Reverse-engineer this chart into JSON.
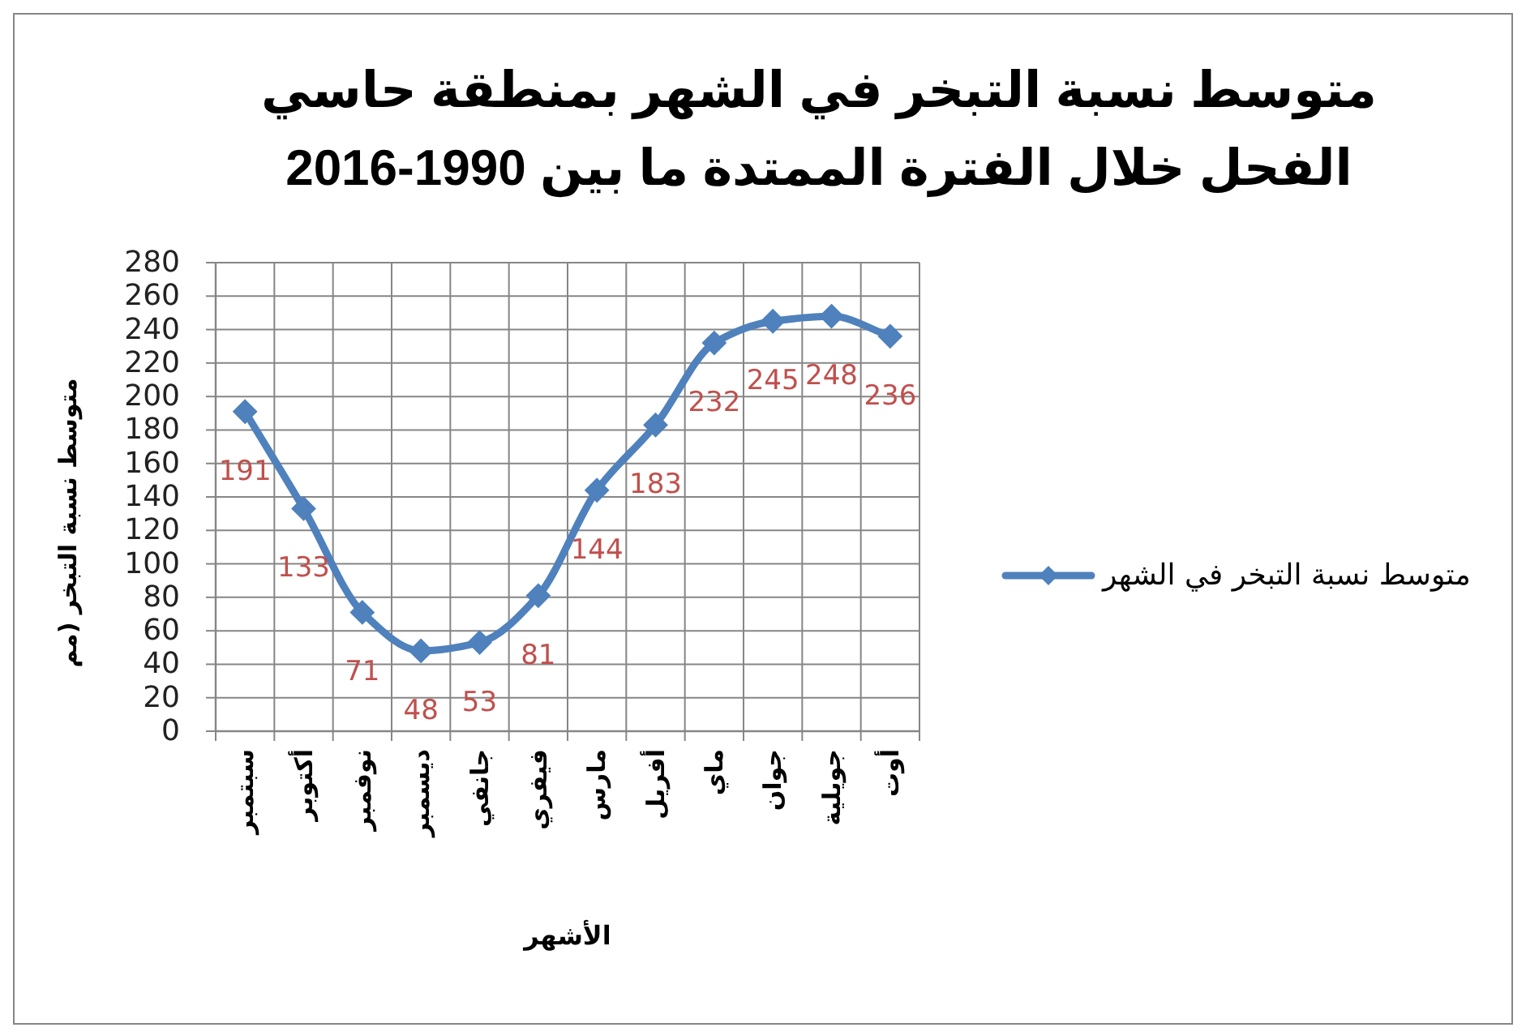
{
  "chart_data": {
    "type": "line",
    "title": "متوسط نسبة التبخر في الشهر بمنطقة حاسي\nالفحل خلال الفترة الممتدة ما بين 1990-2016",
    "xlabel": "الأشهر",
    "ylabel": "متوسط نسبة التبخر (مم",
    "categories": [
      "سبتمبر",
      "أكتوبر",
      "نوفمبر",
      "ديسمبر",
      "جانفي",
      "فيفري",
      "مارس",
      "أفريل",
      "ماي",
      "جوان",
      "جويلية",
      "أوت"
    ],
    "series": [
      {
        "name": "متوسط نسبة التبخر في الشهر",
        "color": "#4f81bd",
        "values": [
          191,
          133,
          71,
          48,
          53,
          81,
          144,
          183,
          232,
          245,
          248,
          236
        ]
      }
    ],
    "ylim": [
      0,
      280
    ],
    "yticks": [
      0,
      20,
      40,
      60,
      80,
      100,
      120,
      140,
      160,
      180,
      200,
      220,
      240,
      260,
      280
    ],
    "grid": true,
    "legend": "right",
    "marker": "diamond",
    "data_labels": true
  }
}
